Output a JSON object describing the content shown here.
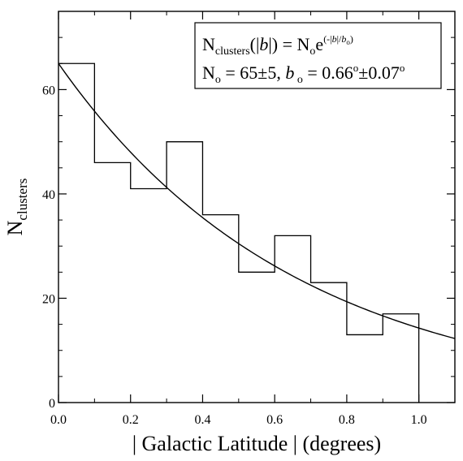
{
  "chart_data": {
    "type": "histogram",
    "xlabel": "| Galactic Latitude | (degrees)",
    "ylabel": {
      "main": "N",
      "sub": "clusters"
    },
    "xlim": [
      0.0,
      1.1
    ],
    "ylim": [
      0,
      75
    ],
    "x_ticks": [
      "0.0",
      "0.2",
      "0.4",
      "0.6",
      "0.8",
      "1.0"
    ],
    "y_ticks": [
      "0",
      "20",
      "40",
      "60"
    ],
    "x_tick_values": [
      0.0,
      0.2,
      0.4,
      0.6,
      0.8,
      1.0
    ],
    "y_tick_values": [
      0,
      20,
      40,
      60
    ],
    "bin_edges": [
      0.0,
      0.1,
      0.2,
      0.3,
      0.4,
      0.5,
      0.6,
      0.7,
      0.8,
      0.9,
      1.0
    ],
    "counts": [
      65,
      46,
      41,
      50,
      36,
      25,
      32,
      23,
      13,
      17
    ],
    "fit": {
      "N0": 65,
      "b0": 0.66,
      "x_range": [
        0.0,
        1.1
      ]
    },
    "legend": {
      "line1": {
        "n": "N",
        "n_sub": "clusters",
        "mid": "(|",
        "b": "b",
        "rest": "|) = N",
        "o_sub": "o",
        "e": "e",
        "exp": "(-|",
        "exp_b": "b",
        "exp_mid": "|/",
        "exp_b0": "b",
        "exp_o": "o",
        "exp_close": ")"
      },
      "line2": {
        "n": "N",
        "o_sub": "o",
        "mid": " = 65±5, ",
        "b": "b",
        "b_sub": " o",
        "val": " = 0.66",
        "deg1": "o",
        "pm": "±0.07",
        "deg2": "o"
      }
    },
    "grid": false
  }
}
